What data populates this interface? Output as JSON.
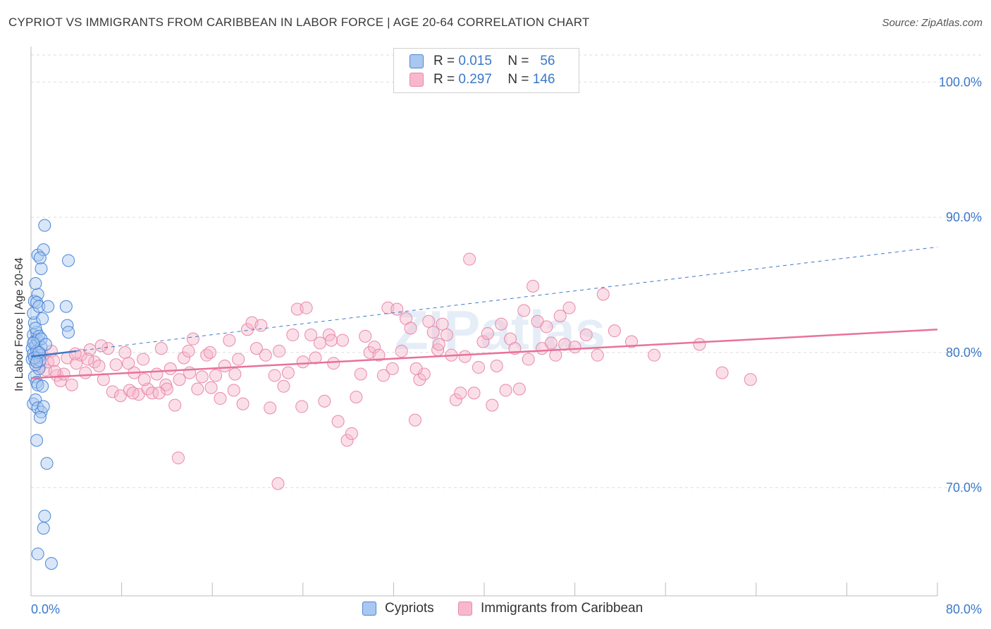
{
  "header": {
    "title": "CYPRIOT VS IMMIGRANTS FROM CARIBBEAN IN LABOR FORCE | AGE 20-64 CORRELATION CHART",
    "source": "Source: ZipAtlas.com"
  },
  "legend": {
    "rows": [
      {
        "r_label": "R =",
        "r_value": "0.015",
        "n_label": "N =",
        "n_value": "56"
      },
      {
        "r_label": "R =",
        "r_value": "0.297",
        "n_label": "N =",
        "n_value": "146"
      }
    ]
  },
  "bottom_legend": {
    "cypriots": "Cypriots",
    "caribbean": "Immigrants from Caribbean"
  },
  "watermark": "ZIPatlas",
  "colors": {
    "cypriot_fill": "#a9c8f0",
    "cypriot_stroke": "#4a86d8",
    "cypriot_line": "#3a78c9",
    "caribbean_fill": "#f7b8cc",
    "caribbean_stroke": "#e889a8",
    "caribbean_line": "#e8729a",
    "axis_label": "#3a78c9",
    "grid": "#dddddd"
  },
  "chart_data": {
    "type": "scatter",
    "title": "CYPRIOT VS IMMIGRANTS FROM CARIBBEAN IN LABOR FORCE | AGE 20-64 CORRELATION CHART",
    "xlabel": "",
    "ylabel": "In Labor Force | Age 20-64",
    "xlim": [
      0,
      80
    ],
    "ylim": [
      62,
      102
    ],
    "x_tick_labels": [
      "0.0%",
      "80.0%"
    ],
    "y_ticks": [
      70,
      80,
      90,
      100
    ],
    "y_tick_labels": [
      "70.0%",
      "80.0%",
      "90.0%",
      "100.0%"
    ],
    "grid": "horizontal dashed",
    "legend_position": "top-center",
    "series": [
      {
        "name": "Cypriots",
        "trend": {
          "x": [
            0,
            4
          ],
          "y": [
            79.7,
            80.1
          ],
          "dashed_extension": {
            "x": [
              4,
              80
            ],
            "y": [
              80.1,
              87.8
            ]
          }
        },
        "points": [
          [
            0.1,
            80.3
          ],
          [
            0.2,
            81.3
          ],
          [
            0.3,
            80.8
          ],
          [
            0.1,
            79.5
          ],
          [
            0.4,
            80.5
          ],
          [
            0.2,
            79.9
          ],
          [
            0.5,
            81.5
          ],
          [
            0.3,
            82.2
          ],
          [
            0.6,
            80.9
          ],
          [
            0.4,
            81.8
          ],
          [
            0.7,
            81.2
          ],
          [
            0.5,
            80.1
          ],
          [
            0.8,
            79.8
          ],
          [
            0.2,
            82.9
          ],
          [
            0.9,
            80.4
          ],
          [
            0.3,
            83.8
          ],
          [
            0.6,
            84.3
          ],
          [
            0.5,
            83.7
          ],
          [
            0.7,
            83.4
          ],
          [
            1.0,
            82.5
          ],
          [
            0.4,
            85.1
          ],
          [
            0.9,
            86.2
          ],
          [
            0.6,
            87.2
          ],
          [
            1.1,
            87.6
          ],
          [
            0.8,
            87.0
          ],
          [
            1.2,
            89.4
          ],
          [
            3.3,
            86.8
          ],
          [
            3.1,
            83.4
          ],
          [
            3.2,
            82.0
          ],
          [
            3.3,
            81.5
          ],
          [
            1.5,
            83.4
          ],
          [
            0.3,
            78.2
          ],
          [
            0.5,
            77.8
          ],
          [
            0.7,
            78.8
          ],
          [
            0.4,
            79.1
          ],
          [
            0.8,
            79.4
          ],
          [
            0.6,
            77.6
          ],
          [
            1.0,
            77.5
          ],
          [
            0.2,
            76.2
          ],
          [
            0.4,
            76.5
          ],
          [
            0.6,
            75.9
          ],
          [
            0.9,
            75.6
          ],
          [
            1.1,
            76.0
          ],
          [
            0.8,
            75.2
          ],
          [
            0.5,
            73.5
          ],
          [
            1.4,
            71.8
          ],
          [
            1.2,
            67.9
          ],
          [
            1.1,
            67.0
          ],
          [
            0.6,
            65.1
          ],
          [
            1.8,
            64.4
          ],
          [
            0.3,
            79.6
          ],
          [
            0.9,
            81.0
          ],
          [
            1.3,
            80.6
          ],
          [
            0.2,
            80.7
          ],
          [
            0.7,
            80.0
          ],
          [
            0.5,
            79.3
          ]
        ]
      },
      {
        "name": "Immigrants from Caribbean",
        "trend": {
          "x": [
            0,
            80
          ],
          "y": [
            78.1,
            81.7
          ]
        },
        "points": [
          [
            0.5,
            79.6
          ],
          [
            0.8,
            79.0
          ],
          [
            1.0,
            79.8
          ],
          [
            1.3,
            78.7
          ],
          [
            1.5,
            79.3
          ],
          [
            1.8,
            80.1
          ],
          [
            2.0,
            79.4
          ],
          [
            2.3,
            78.3
          ],
          [
            2.6,
            77.9
          ],
          [
            2.9,
            78.4
          ],
          [
            3.2,
            79.6
          ],
          [
            3.6,
            77.6
          ],
          [
            4.0,
            79.2
          ],
          [
            4.4,
            79.8
          ],
          [
            4.8,
            78.5
          ],
          [
            5.2,
            80.2
          ],
          [
            5.6,
            79.3
          ],
          [
            6.0,
            79.0
          ],
          [
            6.4,
            78.0
          ],
          [
            6.8,
            80.3
          ],
          [
            7.2,
            77.1
          ],
          [
            7.5,
            79.1
          ],
          [
            7.9,
            76.8
          ],
          [
            8.3,
            80.0
          ],
          [
            8.7,
            77.2
          ],
          [
            9.1,
            78.5
          ],
          [
            9.5,
            76.9
          ],
          [
            9.9,
            79.5
          ],
          [
            10.3,
            77.3
          ],
          [
            10.7,
            77.0
          ],
          [
            11.1,
            78.4
          ],
          [
            11.5,
            80.3
          ],
          [
            11.9,
            77.6
          ],
          [
            12.3,
            78.8
          ],
          [
            12.7,
            76.1
          ],
          [
            13.1,
            78.0
          ],
          [
            13.5,
            79.6
          ],
          [
            13.9,
            80.1
          ],
          [
            14.3,
            81.0
          ],
          [
            14.7,
            77.3
          ],
          [
            15.1,
            78.2
          ],
          [
            15.5,
            79.8
          ],
          [
            15.9,
            77.4
          ],
          [
            16.3,
            78.3
          ],
          [
            16.7,
            76.6
          ],
          [
            17.1,
            79.0
          ],
          [
            17.5,
            80.9
          ],
          [
            17.9,
            77.2
          ],
          [
            18.3,
            79.5
          ],
          [
            18.7,
            76.2
          ],
          [
            19.1,
            81.7
          ],
          [
            19.5,
            82.2
          ],
          [
            19.9,
            80.3
          ],
          [
            20.3,
            82.0
          ],
          [
            20.7,
            79.8
          ],
          [
            21.1,
            75.9
          ],
          [
            21.5,
            78.3
          ],
          [
            21.9,
            80.1
          ],
          [
            22.3,
            77.5
          ],
          [
            22.7,
            78.5
          ],
          [
            23.1,
            81.3
          ],
          [
            23.5,
            83.2
          ],
          [
            23.9,
            76.0
          ],
          [
            24.3,
            83.3
          ],
          [
            24.7,
            81.3
          ],
          [
            25.1,
            79.6
          ],
          [
            25.5,
            80.7
          ],
          [
            25.9,
            76.4
          ],
          [
            26.3,
            81.3
          ],
          [
            26.7,
            79.2
          ],
          [
            27.1,
            74.9
          ],
          [
            27.5,
            80.9
          ],
          [
            27.9,
            73.5
          ],
          [
            28.3,
            74.0
          ],
          [
            28.7,
            76.7
          ],
          [
            29.1,
            78.4
          ],
          [
            29.5,
            81.2
          ],
          [
            29.9,
            80.0
          ],
          [
            30.3,
            80.4
          ],
          [
            30.7,
            79.8
          ],
          [
            31.1,
            78.3
          ],
          [
            31.5,
            83.3
          ],
          [
            31.9,
            78.8
          ],
          [
            32.3,
            83.2
          ],
          [
            32.7,
            80.1
          ],
          [
            33.1,
            82.5
          ],
          [
            33.5,
            81.8
          ],
          [
            33.9,
            75.0
          ],
          [
            34.3,
            78.0
          ],
          [
            34.7,
            78.4
          ],
          [
            35.1,
            82.3
          ],
          [
            35.5,
            81.5
          ],
          [
            35.9,
            80.2
          ],
          [
            36.3,
            82.1
          ],
          [
            36.7,
            81.3
          ],
          [
            37.1,
            79.8
          ],
          [
            37.5,
            76.5
          ],
          [
            37.9,
            77.0
          ],
          [
            38.3,
            79.7
          ],
          [
            38.7,
            86.9
          ],
          [
            39.1,
            77.0
          ],
          [
            39.5,
            78.9
          ],
          [
            39.9,
            80.8
          ],
          [
            40.3,
            81.4
          ],
          [
            40.7,
            76.1
          ],
          [
            41.1,
            79.0
          ],
          [
            41.5,
            82.1
          ],
          [
            41.9,
            77.2
          ],
          [
            42.3,
            81.0
          ],
          [
            42.7,
            80.3
          ],
          [
            43.1,
            77.3
          ],
          [
            43.5,
            83.1
          ],
          [
            43.9,
            79.5
          ],
          [
            44.3,
            84.9
          ],
          [
            44.7,
            82.3
          ],
          [
            45.1,
            80.3
          ],
          [
            45.5,
            81.9
          ],
          [
            45.9,
            80.7
          ],
          [
            46.3,
            79.8
          ],
          [
            46.7,
            82.7
          ],
          [
            47.1,
            80.6
          ],
          [
            47.5,
            83.3
          ],
          [
            48.0,
            80.4
          ],
          [
            49.0,
            81.3
          ],
          [
            50.0,
            79.8
          ],
          [
            50.5,
            84.3
          ],
          [
            51.5,
            81.6
          ],
          [
            53.0,
            80.8
          ],
          [
            55.0,
            79.8
          ],
          [
            59.0,
            80.6
          ],
          [
            61.0,
            78.5
          ],
          [
            63.5,
            78.0
          ],
          [
            13.0,
            72.2
          ],
          [
            21.8,
            70.3
          ],
          [
            8.6,
            79.2
          ],
          [
            10.0,
            78.0
          ],
          [
            15.8,
            80.0
          ],
          [
            12.0,
            77.3
          ],
          [
            24.0,
            79.3
          ],
          [
            26.5,
            80.9
          ],
          [
            34.0,
            78.8
          ],
          [
            36.0,
            80.6
          ],
          [
            6.2,
            80.5
          ],
          [
            18.0,
            78.4
          ],
          [
            2.1,
            78.6
          ],
          [
            3.9,
            79.9
          ],
          [
            5.0,
            79.5
          ],
          [
            9.0,
            77.0
          ],
          [
            11.3,
            77.0
          ],
          [
            14.0,
            78.5
          ]
        ]
      }
    ]
  }
}
